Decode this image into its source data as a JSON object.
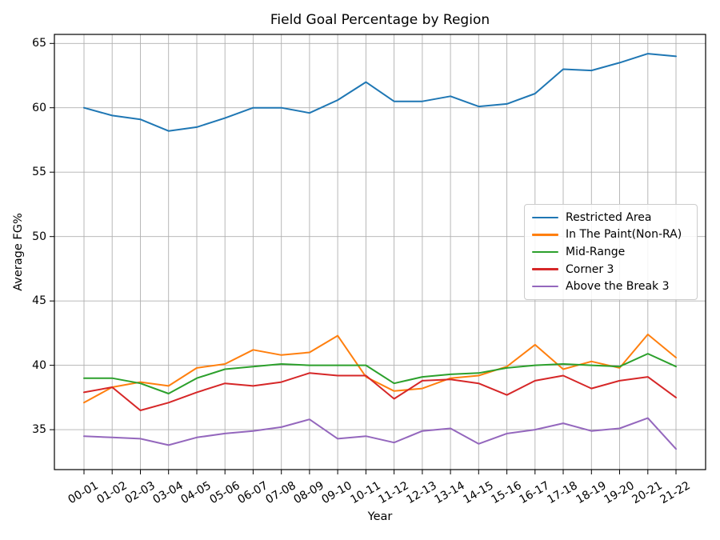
{
  "colors": {
    "grid": "#b0b0b0",
    "spine": "#000000",
    "tick": "#000000",
    "text": "#000000",
    "background": "#ffffff",
    "legend_border": "#cccccc"
  },
  "chart_data": {
    "type": "line",
    "title": "Field Goal Percentage by Region",
    "xlabel": "Year",
    "ylabel": "Average FG%",
    "grid": true,
    "legend_position": "center right",
    "categories": [
      "00-01",
      "01-02",
      "02-03",
      "03-04",
      "04-05",
      "05-06",
      "06-07",
      "07-08",
      "08-09",
      "09-10",
      "10-11",
      "11-12",
      "12-13",
      "13-14",
      "14-15",
      "15-16",
      "16-17",
      "17-18",
      "18-19",
      "19-20",
      "20-21",
      "21-22"
    ],
    "yticks": [
      35,
      40,
      45,
      50,
      55,
      60,
      65
    ],
    "ylim": [
      31.9,
      65.7
    ],
    "series": [
      {
        "name": "Restricted Area",
        "color": "#1f77b4",
        "values": [
          60.0,
          59.4,
          59.1,
          58.2,
          58.5,
          59.2,
          60.0,
          60.0,
          59.6,
          60.6,
          62.0,
          60.5,
          60.5,
          60.9,
          60.1,
          60.3,
          61.1,
          63.0,
          62.9,
          63.5,
          64.2,
          64.0
        ]
      },
      {
        "name": "In The Paint(Non-RA)",
        "color": "#ff7f0e",
        "values": [
          37.1,
          38.3,
          38.7,
          38.4,
          39.8,
          40.1,
          41.2,
          40.8,
          41.0,
          42.3,
          39.1,
          38.0,
          38.2,
          39.0,
          39.2,
          39.9,
          41.6,
          39.7,
          40.3,
          39.8,
          42.4,
          40.6
        ]
      },
      {
        "name": "Mid-Range",
        "color": "#2ca02c",
        "values": [
          39.0,
          39.0,
          38.6,
          37.8,
          39.0,
          39.7,
          39.9,
          40.1,
          40.0,
          40.0,
          40.0,
          38.6,
          39.1,
          39.3,
          39.4,
          39.8,
          40.0,
          40.1,
          40.0,
          39.9,
          40.9,
          39.9
        ]
      },
      {
        "name": "Corner 3",
        "color": "#d62728",
        "values": [
          37.9,
          38.3,
          36.5,
          37.1,
          37.9,
          38.6,
          38.4,
          38.7,
          39.4,
          39.2,
          39.2,
          37.4,
          38.8,
          38.9,
          38.6,
          37.7,
          38.8,
          39.2,
          38.2,
          38.8,
          39.1,
          37.5
        ]
      },
      {
        "name": "Above the Break 3",
        "color": "#9467bd",
        "values": [
          34.5,
          34.4,
          34.3,
          33.8,
          34.4,
          34.7,
          34.9,
          35.2,
          35.8,
          34.3,
          34.5,
          34.0,
          34.9,
          35.1,
          33.9,
          34.7,
          35.0,
          35.5,
          34.9,
          35.1,
          35.9,
          33.5
        ]
      }
    ]
  }
}
